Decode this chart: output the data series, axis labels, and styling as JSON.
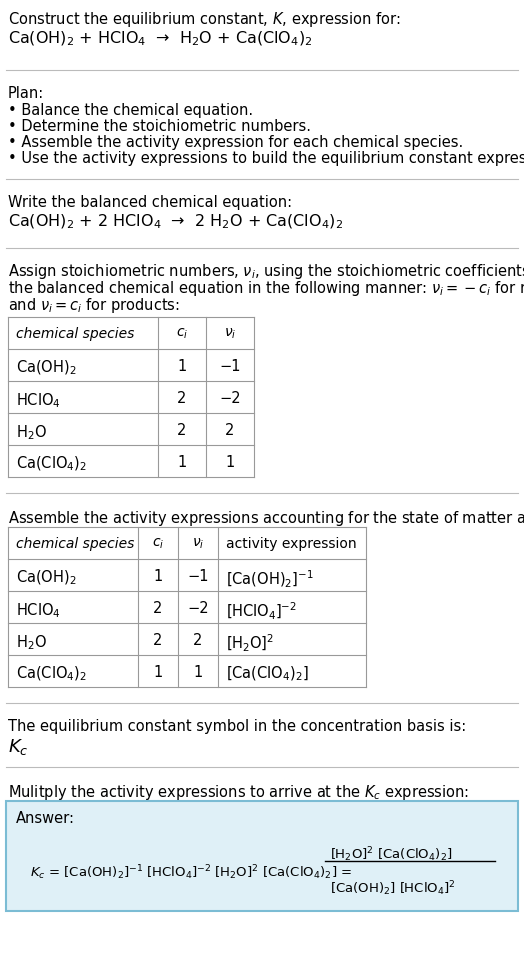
{
  "bg_color": "#ffffff",
  "text_color": "#000000",
  "title_line1": "Construct the equilibrium constant, $K$, expression for:",
  "title_line2": "Ca(OH)$_2$ + HClO$_4$  →  H$_2$O + Ca(ClO$_4$)$_2$",
  "plan_header": "Plan:",
  "plan_bullets": [
    "• Balance the chemical equation.",
    "• Determine the stoichiometric numbers.",
    "• Assemble the activity expression for each chemical species.",
    "• Use the activity expressions to build the equilibrium constant expression."
  ],
  "balanced_header": "Write the balanced chemical equation:",
  "balanced_eq": "Ca(OH)$_2$ + 2 HClO$_4$  →  2 H$_2$O + Ca(ClO$_4$)$_2$",
  "stoich_lines": [
    "Assign stoichiometric numbers, $\\nu_i$, using the stoichiometric coefficients, $c_i$, from",
    "the balanced chemical equation in the following manner: $\\nu_i = -c_i$ for reactants",
    "and $\\nu_i = c_i$ for products:"
  ],
  "table1_cols": [
    "chemical species",
    "$c_i$",
    "$\\nu_i$"
  ],
  "table1_rows": [
    [
      "Ca(OH)$_2$",
      "1",
      "−1"
    ],
    [
      "HClO$_4$",
      "2",
      "−2"
    ],
    [
      "H$_2$O",
      "2",
      "2"
    ],
    [
      "Ca(ClO$_4$)$_2$",
      "1",
      "1"
    ]
  ],
  "activity_header": "Assemble the activity expressions accounting for the state of matter and $\\nu_i$:",
  "table2_cols": [
    "chemical species",
    "$c_i$",
    "$\\nu_i$",
    "activity expression"
  ],
  "table2_rows": [
    [
      "Ca(OH)$_2$",
      "1",
      "−1",
      "[Ca(OH)$_2$]$^{-1}$"
    ],
    [
      "HClO$_4$",
      "2",
      "−2",
      "[HClO$_4$]$^{-2}$"
    ],
    [
      "H$_2$O",
      "2",
      "2",
      "[H$_2$O]$^2$"
    ],
    [
      "Ca(ClO$_4$)$_2$",
      "1",
      "1",
      "[Ca(ClO$_4$)$_2$]"
    ]
  ],
  "kc_symbol_header": "The equilibrium constant symbol in the concentration basis is:",
  "kc_symbol": "$K_c$",
  "multiply_header": "Mulitply the activity expressions to arrive at the $K_c$ expression:",
  "answer_label": "Answer:",
  "answer_box_color": "#dff0f7",
  "answer_box_border": "#7bbcd4"
}
